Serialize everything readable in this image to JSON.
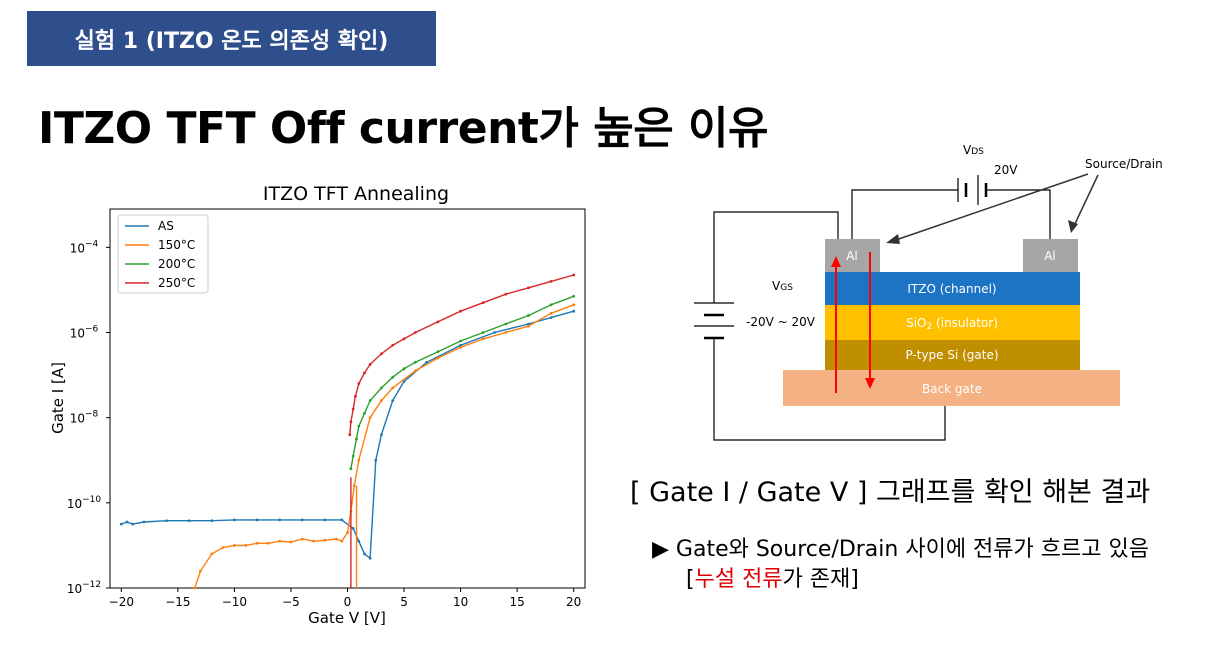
{
  "header": {
    "badge": "실험 1 (ITZO 온도 의존성 확인)",
    "title": "ITZO TFT Off current가 높은 이유"
  },
  "chart_data": {
    "type": "line",
    "title": "ITZO TFT Annealing",
    "xlabel": "Gate V [V]",
    "ylabel": "Gate I [A]",
    "xlim": [
      -21,
      21
    ],
    "ylim_log10": [
      -12,
      -3.1
    ],
    "yscale": "log",
    "grid": false,
    "legend_position": "top-left",
    "xticks": [
      -20,
      -15,
      -10,
      -5,
      0,
      5,
      10,
      15,
      20
    ],
    "xtick_labels": [
      "−20",
      "−15",
      "−10",
      "−5",
      "0",
      "5",
      "10",
      "15",
      "20"
    ],
    "yticks_log10": [
      -12,
      -10,
      -8,
      -6,
      -4
    ],
    "ytick_bases": [
      "10",
      "10",
      "10",
      "10",
      "10"
    ],
    "ytick_exps": [
      "−12",
      "−10",
      "−8",
      "−6",
      "−4"
    ],
    "series": [
      {
        "name": "AS",
        "color": "#1f77b4",
        "x": [
          -20,
          -19.5,
          -19,
          -18,
          -16,
          -14,
          -12,
          -10,
          -8,
          -6,
          -4,
          -2,
          -0.5,
          0.5,
          1,
          1.5,
          2,
          2.5,
          3,
          4,
          5,
          7,
          10,
          13,
          16,
          18,
          20
        ],
        "log10_y": [
          -10.5,
          -10.45,
          -10.5,
          -10.45,
          -10.42,
          -10.42,
          -10.42,
          -10.4,
          -10.4,
          -10.4,
          -10.4,
          -10.4,
          -10.4,
          -10.6,
          -10.9,
          -11.2,
          -11.3,
          -9.0,
          -8.4,
          -7.6,
          -7.15,
          -6.7,
          -6.3,
          -6.0,
          -5.8,
          -5.65,
          -5.5
        ]
      },
      {
        "name": "150°C",
        "color": "#ff7f0e",
        "x": [
          -13.5,
          -13,
          -12,
          -11,
          -10,
          -9,
          -8,
          -7,
          -6,
          -5,
          -4,
          -3,
          -2,
          -1,
          -0.5,
          0,
          0.3,
          0.6,
          1,
          2,
          3,
          4,
          6,
          8,
          10,
          12,
          14,
          16,
          18,
          20
        ],
        "log10_y": [
          -12.0,
          -11.6,
          -11.2,
          -11.05,
          -11.0,
          -11.0,
          -10.95,
          -10.95,
          -10.9,
          -10.92,
          -10.85,
          -10.9,
          -10.88,
          -10.85,
          -10.9,
          -10.7,
          -10.2,
          -9.6,
          -9.0,
          -8.0,
          -7.6,
          -7.3,
          -6.9,
          -6.6,
          -6.35,
          -6.15,
          -6.0,
          -5.85,
          -5.55,
          -5.35
        ]
      },
      {
        "name": "200°C",
        "color": "#2ca02c",
        "x": [
          0.3,
          0.5,
          0.8,
          1,
          1.5,
          2,
          3,
          4,
          5,
          6,
          8,
          10,
          12,
          14,
          16,
          18,
          20
        ],
        "log10_y": [
          -9.2,
          -8.9,
          -8.5,
          -8.2,
          -7.9,
          -7.6,
          -7.3,
          -7.05,
          -6.85,
          -6.7,
          -6.45,
          -6.2,
          -6.0,
          -5.8,
          -5.6,
          -5.35,
          -5.15
        ]
      },
      {
        "name": "250°C",
        "color": "#d62728",
        "x": [
          0.2,
          0.3,
          0.5,
          0.7,
          1,
          1.5,
          2,
          3,
          4,
          5,
          6,
          8,
          10,
          12,
          14,
          16,
          18,
          20
        ],
        "log10_y": [
          -8.4,
          -8.1,
          -7.8,
          -7.5,
          -7.2,
          -6.95,
          -6.75,
          -6.5,
          -6.3,
          -6.15,
          -6.0,
          -5.75,
          -5.5,
          -5.3,
          -5.1,
          -4.95,
          -4.8,
          -4.65
        ]
      }
    ],
    "vertical_markers": [
      {
        "x": 0.3,
        "color": "#d62728",
        "to_log10": -9.4
      },
      {
        "x": 0.8,
        "color": "#ff7f0e",
        "to_log10": -9.6
      }
    ]
  },
  "diagram": {
    "vds_main": "V",
    "vds_sub": "DS",
    "vds_value": "20V",
    "source_drain": "Source/Drain",
    "vgs_main": "V",
    "vgs_sub": "GS",
    "vgs_range": "-20V ~ 20V",
    "al_left": "Al",
    "al_right": "Al",
    "itzo_layer": "ITZO (channel)",
    "sio_prefix": "SiO",
    "sio_sub": "2",
    "sio_suffix": " (insulator)",
    "ptype_layer": "P-type Si (gate)",
    "back_gate": "Back gate",
    "colors": {
      "itzo": "#1d73c4",
      "sio2": "#ffc000",
      "ptype": "#bf8f00",
      "backgate": "#f4b183",
      "al": "#a6a6a6",
      "arrow": "#ff0000"
    }
  },
  "result": {
    "heading": "[ Gate I / Gate V ] 그래프를 확인 해본 결과",
    "bullet_marker": "▶",
    "bullet_line1": "Gate와 Source/Drain 사이에 전류가 흐르고 있음",
    "bracket_open": "[",
    "leak_text": "누설 전류",
    "bracket_rest": "가 존재]"
  }
}
